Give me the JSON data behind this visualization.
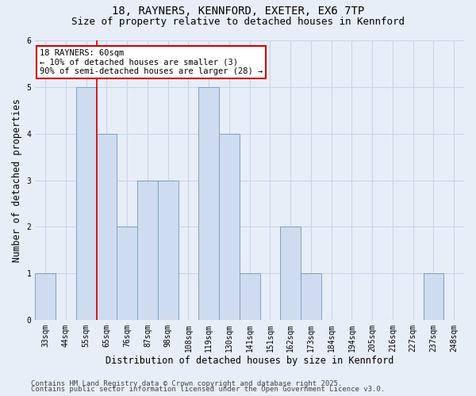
{
  "title_line1": "18, RAYNERS, KENNFORD, EXETER, EX6 7TP",
  "title_line2": "Size of property relative to detached houses in Kennford",
  "xlabel": "Distribution of detached houses by size in Kennford",
  "ylabel": "Number of detached properties",
  "categories": [
    "33sqm",
    "44sqm",
    "55sqm",
    "65sqm",
    "76sqm",
    "87sqm",
    "98sqm",
    "108sqm",
    "119sqm",
    "130sqm",
    "141sqm",
    "151sqm",
    "162sqm",
    "173sqm",
    "184sqm",
    "194sqm",
    "205sqm",
    "216sqm",
    "227sqm",
    "237sqm",
    "248sqm"
  ],
  "values": [
    1,
    0,
    5,
    4,
    2,
    3,
    3,
    0,
    5,
    4,
    1,
    0,
    2,
    1,
    0,
    0,
    0,
    0,
    0,
    1,
    0
  ],
  "bar_color": "#cfdcef",
  "bar_edge_color": "#7a9fc4",
  "red_line_x": 2.5,
  "annotation_text": "18 RAYNERS: 60sqm\n← 10% of detached houses are smaller (3)\n90% of semi-detached houses are larger (28) →",
  "annotation_box_facecolor": "#ffffff",
  "annotation_box_edgecolor": "#cc0000",
  "ylim": [
    0,
    6
  ],
  "yticks": [
    0,
    1,
    2,
    3,
    4,
    5,
    6
  ],
  "grid_color": "#c8d4e8",
  "background_color": "#e8eef8",
  "footer_line1": "Contains HM Land Registry data © Crown copyright and database right 2025.",
  "footer_line2": "Contains public sector information licensed under the Open Government Licence v3.0.",
  "title_fontsize": 10,
  "subtitle_fontsize": 9,
  "axis_label_fontsize": 8.5,
  "tick_fontsize": 7,
  "annotation_fontsize": 7.5,
  "footer_fontsize": 6.5
}
